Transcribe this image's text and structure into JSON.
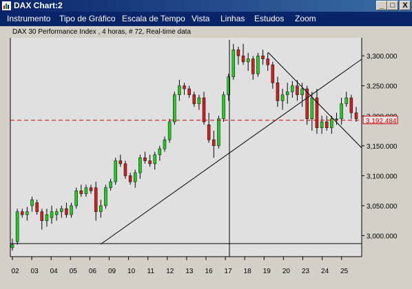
{
  "window": {
    "title": "DAX Chart:2",
    "minimize": "_",
    "maximize": "□",
    "close": "X"
  },
  "menu": [
    "Instrumento",
    "Tipo de Gráfico",
    "Escala de Tempo",
    "Vista",
    "Linhas",
    "Estudos",
    "Zoom"
  ],
  "chart_data": {
    "type": "candlestick",
    "title": "DAX 30 Performance Index , 4 horas, # 72, Real-time data",
    "x_ticks": [
      "02",
      "03",
      "04",
      "05",
      "06",
      "09",
      "10",
      "11",
      "12",
      "13",
      "16",
      "17",
      "18",
      "19",
      "20",
      "23",
      "24",
      "25"
    ],
    "y_ticks": [
      "3,300.000",
      "3,250.000",
      "3,200.000",
      "3,150.000",
      "3,100.000",
      "3,050.000",
      "3,000.000"
    ],
    "y_tick_values": [
      3300,
      3250,
      3200,
      3150,
      3100,
      3050,
      3000
    ],
    "ylim": [
      2965,
      3330
    ],
    "current_price": {
      "label": "3,192.484",
      "value": 3192.484,
      "color": "#d00000"
    },
    "colors": {
      "up": "#22cc22",
      "down": "#cc2222",
      "background": "#e0e0e0"
    },
    "candles": [
      [
        2980,
        2995,
        2975,
        2985
      ],
      [
        2990,
        3045,
        2985,
        3040
      ],
      [
        3040,
        3045,
        3030,
        3035
      ],
      [
        3035,
        3048,
        3025,
        3040
      ],
      [
        3050,
        3065,
        3040,
        3060
      ],
      [
        3055,
        3060,
        3035,
        3040
      ],
      [
        3040,
        3045,
        3010,
        3025
      ],
      [
        3025,
        3045,
        3015,
        3035
      ],
      [
        3030,
        3050,
        3020,
        3040
      ],
      [
        3035,
        3045,
        3025,
        3040
      ],
      [
        3040,
        3050,
        3030,
        3045
      ],
      [
        3045,
        3055,
        3030,
        3035
      ],
      [
        3035,
        3055,
        3030,
        3050
      ],
      [
        3050,
        3080,
        3045,
        3075
      ],
      [
        3075,
        3085,
        3065,
        3070
      ],
      [
        3070,
        3085,
        3065,
        3080
      ],
      [
        3080,
        3085,
        3070,
        3075
      ],
      [
        3080,
        3090,
        3025,
        3040
      ],
      [
        3040,
        3060,
        3030,
        3050
      ],
      [
        3050,
        3085,
        3045,
        3080
      ],
      [
        3080,
        3095,
        3075,
        3090
      ],
      [
        3090,
        3130,
        3085,
        3125
      ],
      [
        3125,
        3135,
        3115,
        3120
      ],
      [
        3120,
        3125,
        3095,
        3100
      ],
      [
        3100,
        3105,
        3085,
        3090
      ],
      [
        3090,
        3110,
        3080,
        3105
      ],
      [
        3105,
        3135,
        3095,
        3130
      ],
      [
        3130,
        3140,
        3120,
        3125
      ],
      [
        3125,
        3135,
        3115,
        3120
      ],
      [
        3120,
        3140,
        3110,
        3135
      ],
      [
        3135,
        3150,
        3125,
        3145
      ],
      [
        3145,
        3165,
        3140,
        3160
      ],
      [
        3160,
        3195,
        3155,
        3190
      ],
      [
        3190,
        3240,
        3185,
        3235
      ],
      [
        3235,
        3260,
        3225,
        3250
      ],
      [
        3250,
        3255,
        3235,
        3245
      ],
      [
        3245,
        3250,
        3230,
        3235
      ],
      [
        3235,
        3240,
        3215,
        3220
      ],
      [
        3220,
        3235,
        3210,
        3230
      ],
      [
        3230,
        3240,
        3185,
        3190
      ],
      [
        3185,
        3205,
        3155,
        3160
      ],
      [
        3160,
        3175,
        3130,
        3150
      ],
      [
        3150,
        3200,
        3145,
        3195
      ],
      [
        3195,
        3240,
        3190,
        3235
      ],
      [
        3235,
        3270,
        3225,
        3265
      ],
      [
        3265,
        3320,
        3260,
        3310
      ],
      [
        3310,
        3315,
        3285,
        3300
      ],
      [
        3300,
        3320,
        3285,
        3290
      ],
      [
        3290,
        3305,
        3275,
        3295
      ],
      [
        3295,
        3300,
        3260,
        3270
      ],
      [
        3270,
        3305,
        3265,
        3300
      ],
      [
        3300,
        3310,
        3285,
        3295
      ],
      [
        3295,
        3305,
        3275,
        3285
      ],
      [
        3285,
        3290,
        3245,
        3255
      ],
      [
        3255,
        3265,
        3215,
        3225
      ],
      [
        3225,
        3245,
        3210,
        3235
      ],
      [
        3235,
        3255,
        3220,
        3240
      ],
      [
        3240,
        3258,
        3230,
        3250
      ],
      [
        3250,
        3260,
        3225,
        3235
      ],
      [
        3235,
        3255,
        3215,
        3245
      ],
      [
        3245,
        3250,
        3185,
        3195
      ],
      [
        3195,
        3240,
        3175,
        3230
      ],
      [
        3230,
        3245,
        3170,
        3180
      ],
      [
        3180,
        3200,
        3170,
        3190
      ],
      [
        3190,
        3200,
        3175,
        3180
      ],
      [
        3180,
        3200,
        3170,
        3195
      ],
      [
        3195,
        3205,
        3185,
        3195
      ],
      [
        3195,
        3230,
        3185,
        3220
      ],
      [
        3220,
        3240,
        3215,
        3230
      ],
      [
        3230,
        3235,
        3195,
        3205
      ],
      [
        3205,
        3215,
        3190,
        3195
      ]
    ]
  }
}
